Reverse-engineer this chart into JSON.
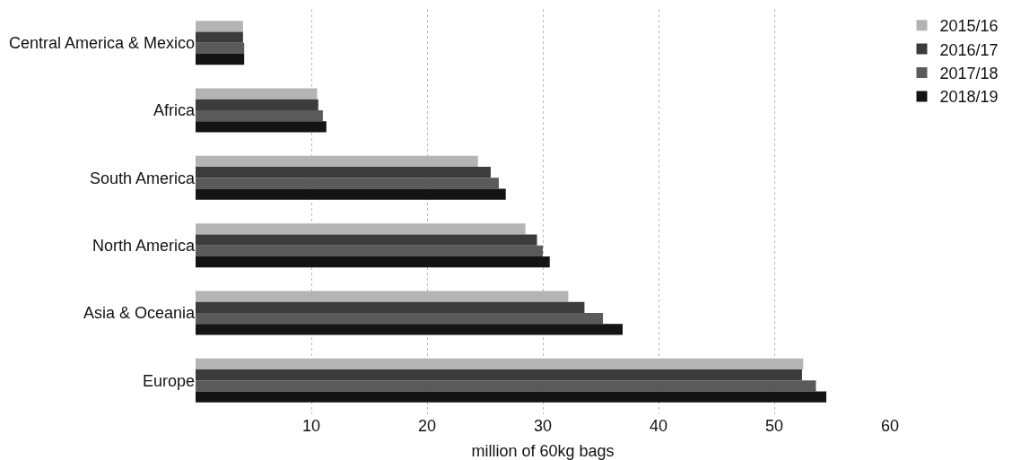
{
  "chart_data": {
    "type": "bar",
    "orientation": "horizontal",
    "xlabel": "million of 60kg bags",
    "categories": [
      "Central America & Mexico",
      "Africa",
      "South America",
      "North America",
      "Asia & Oceania",
      "Europe"
    ],
    "series": [
      {
        "name": "2015/16",
        "color": "#b4b4b4",
        "values": [
          4.1,
          10.5,
          24.4,
          28.5,
          32.2,
          52.5
        ]
      },
      {
        "name": "2016/17",
        "color": "#3c3c3c",
        "values": [
          4.1,
          10.6,
          25.5,
          29.5,
          33.6,
          52.4
        ]
      },
      {
        "name": "2017/18",
        "color": "#5a5a5a",
        "values": [
          4.2,
          11.0,
          26.2,
          30.0,
          35.2,
          53.6
        ]
      },
      {
        "name": "2018/19",
        "color": "#141414",
        "values": [
          4.2,
          11.3,
          26.8,
          30.6,
          36.9,
          54.5
        ]
      }
    ],
    "xlim": [
      0,
      60
    ],
    "xticks": [
      10,
      20,
      30,
      40,
      50,
      60
    ],
    "grid": "x",
    "legend": "top right"
  }
}
